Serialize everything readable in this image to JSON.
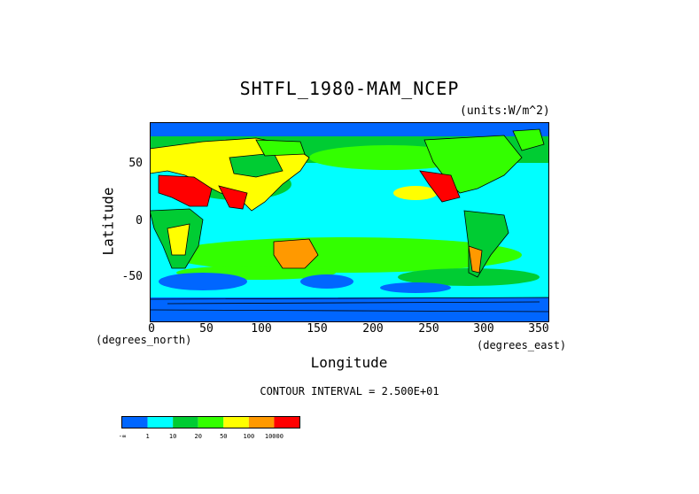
{
  "chart_data": {
    "type": "heatmap",
    "title": "SHTFL_1980-MAM_NCEP",
    "units": "(units:W/m^2)",
    "xlabel": "Longitude",
    "ylabel": "Latitude",
    "x_unit": "(degrees_east)",
    "y_unit": "(degrees_north)",
    "xlim": [
      0,
      360
    ],
    "ylim": [
      -90,
      90
    ],
    "x_ticks": [
      "0",
      "50",
      "100",
      "150",
      "200",
      "250",
      "300",
      "350"
    ],
    "y_ticks": [
      "50",
      "0",
      "-50"
    ],
    "contour_interval": "CONTOUR INTERVAL = 2.500E+01",
    "colorbar": {
      "colors": [
        "#0066ff",
        "#00ffff",
        "#00cc33",
        "#33ff00",
        "#ffff00",
        "#ff9900",
        "#ff0000"
      ],
      "labels": [
        "-∞",
        "1",
        "10",
        "20",
        "50",
        "100",
        "10000"
      ]
    }
  }
}
